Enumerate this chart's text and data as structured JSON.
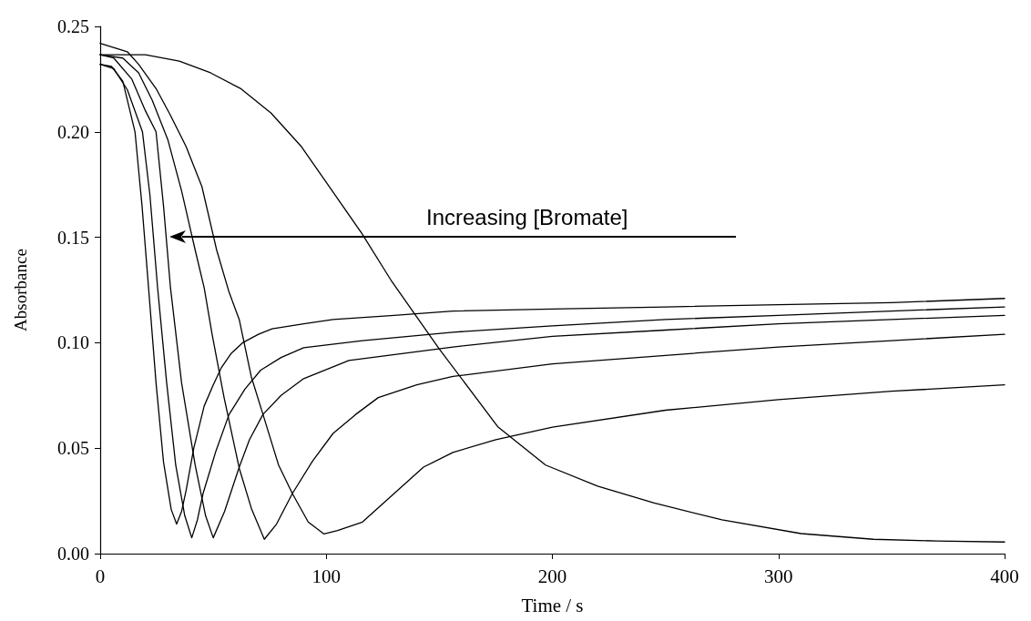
{
  "chart_data": {
    "type": "line",
    "xlabel": "Time / s",
    "ylabel": "Absorbance",
    "xlim": [
      0,
      400
    ],
    "xticks": [
      0,
      100,
      200,
      300,
      400
    ],
    "ylim": [
      0,
      0.25
    ],
    "yticks": [
      {
        "value": 0,
        "label": "0.00"
      },
      {
        "value": 0.05,
        "label": "0.05"
      },
      {
        "value": 0.1,
        "label": "0.10"
      },
      {
        "value": 0.15,
        "label": "0.15"
      },
      {
        "value": 0.2,
        "label": "0.20"
      },
      {
        "value": 0.25,
        "label": "0.25"
      }
    ],
    "grid": false,
    "marker": "none",
    "line_style": "solid",
    "annotations": [
      "Increasing [Bromate]"
    ],
    "series": [
      {
        "color": "#000000",
        "x": [
          0,
          5,
          10,
          15.4,
          18.5,
          21.4,
          24.7,
          28,
          31.4,
          33.8,
          36,
          38,
          41.4,
          46,
          50,
          53.5,
          58,
          63,
          70,
          76,
          90,
          103,
          130,
          156,
          200,
          250,
          300,
          350,
          400
        ],
        "values": [
          0.232,
          0.231,
          0.224,
          0.2,
          0.165,
          0.126,
          0.081,
          0.0435,
          0.021,
          0.014,
          0.02,
          0.03,
          0.05,
          0.07,
          0.08,
          0.088,
          0.095,
          0.1,
          0.104,
          0.1066,
          0.109,
          0.111,
          0.113,
          0.115,
          0.116,
          0.117,
          0.118,
          0.119,
          0.121
        ]
      },
      {
        "color": "#000000",
        "x": [
          0,
          6,
          12,
          18.7,
          22,
          25.4,
          29.4,
          33.4,
          37.4,
          40.5,
          43,
          45.5,
          51,
          57,
          64,
          71,
          80,
          90,
          116,
          156,
          200,
          250,
          300,
          350,
          400
        ],
        "values": [
          0.232,
          0.23,
          0.22,
          0.2,
          0.17,
          0.126,
          0.081,
          0.042,
          0.018,
          0.0075,
          0.016,
          0.0285,
          0.048,
          0.066,
          0.078,
          0.087,
          0.093,
          0.0976,
          0.101,
          0.105,
          0.108,
          0.111,
          0.113,
          0.115,
          0.117
        ]
      },
      {
        "color": "#000000",
        "x": [
          0,
          6,
          14,
          20,
          24.7,
          28,
          31.1,
          36,
          42,
          46.6,
          50,
          55,
          61.5,
          66,
          72,
          80,
          90,
          110,
          156,
          200,
          250,
          300,
          350,
          400
        ],
        "values": [
          0.2366,
          0.235,
          0.225,
          0.21,
          0.2,
          0.165,
          0.126,
          0.081,
          0.042,
          0.018,
          0.0075,
          0.02,
          0.041,
          0.054,
          0.066,
          0.075,
          0.083,
          0.0916,
          0.098,
          0.103,
          0.106,
          0.109,
          0.111,
          0.113
        ]
      },
      {
        "color": "#000000",
        "x": [
          0,
          10,
          17,
          23,
          30,
          36,
          42,
          46,
          49.5,
          54.8,
          61.5,
          67,
          72.6,
          78,
          85,
          94,
          103,
          113,
          123,
          140,
          156,
          200,
          250,
          300,
          350,
          400
        ],
        "values": [
          0.2366,
          0.235,
          0.228,
          0.215,
          0.196,
          0.172,
          0.144,
          0.126,
          0.104,
          0.074,
          0.0405,
          0.021,
          0.0068,
          0.014,
          0.0285,
          0.044,
          0.057,
          0.066,
          0.074,
          0.08,
          0.084,
          0.09,
          0.094,
          0.098,
          0.101,
          0.104
        ]
      },
      {
        "color": "#000000",
        "x": [
          0,
          12,
          17,
          25,
          31,
          38,
          45,
          51.5,
          57,
          61.5,
          66.8,
          72,
          78.9,
          85,
          92,
          99,
          105,
          116,
          130,
          143,
          156,
          175,
          200,
          250,
          300,
          350,
          400
        ],
        "values": [
          0.242,
          0.238,
          0.232,
          0.22,
          0.208,
          0.193,
          0.174,
          0.144,
          0.124,
          0.111,
          0.084,
          0.066,
          0.042,
          0.0285,
          0.015,
          0.0093,
          0.011,
          0.015,
          0.0285,
          0.041,
          0.048,
          0.054,
          0.06,
          0.068,
          0.073,
          0.077,
          0.08
        ]
      },
      {
        "color": "#000000",
        "x": [
          0,
          10,
          20,
          35,
          48.8,
          62,
          75.5,
          89,
          102,
          115.6,
          129,
          150,
          176,
          197,
          220,
          245,
          275,
          310,
          342,
          370,
          400
        ],
        "values": [
          0.2366,
          0.2366,
          0.2366,
          0.2335,
          0.228,
          0.2206,
          0.209,
          0.193,
          0.173,
          0.152,
          0.129,
          0.097,
          0.06,
          0.042,
          0.032,
          0.024,
          0.016,
          0.0095,
          0.0068,
          0.006,
          0.0055
        ]
      }
    ]
  }
}
